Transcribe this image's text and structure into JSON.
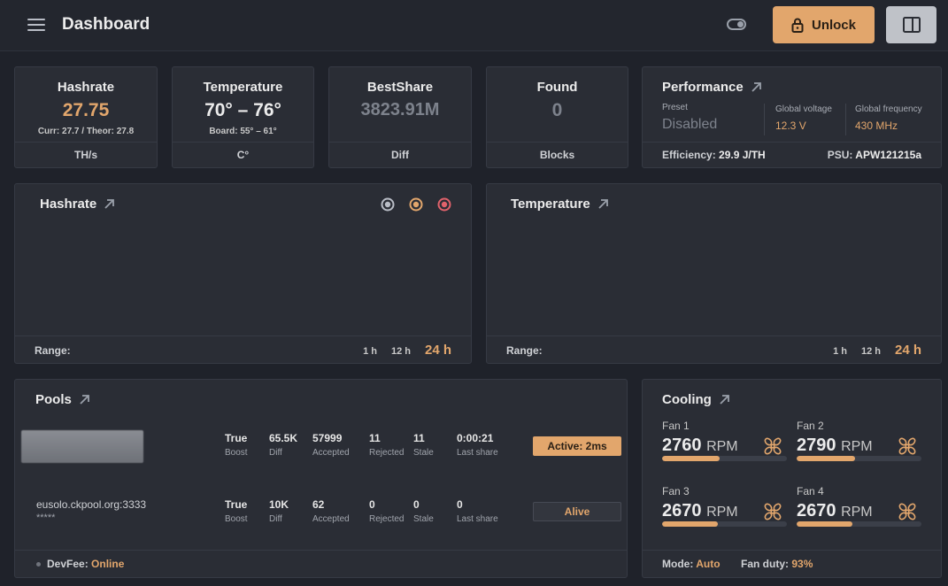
{
  "header": {
    "title": "Dashboard",
    "unlock_label": "Unlock",
    "icons": [
      "menu-icon",
      "toggle-icon",
      "lock-icon",
      "sidebar-panel-icon"
    ]
  },
  "stats": {
    "hashrate": {
      "title": "Hashrate",
      "value": "27.75",
      "sub": "Curr: 27.7 / Theor: 27.8",
      "unit": "TH/s"
    },
    "temperature": {
      "title": "Temperature",
      "value": "70° – 76°",
      "sub": "Board: 55° – 61°",
      "unit": "C°"
    },
    "bestshare": {
      "title": "BestShare",
      "value": "3823.91M",
      "unit": "Diff"
    },
    "found": {
      "title": "Found",
      "value": "0",
      "unit": "Blocks"
    }
  },
  "performance": {
    "title": "Performance",
    "preset_label": "Preset",
    "preset_value": "Disabled",
    "voltage_label": "Global voltage",
    "voltage_value": "12.3 V",
    "frequency_label": "Global frequency",
    "frequency_value": "430 MHz",
    "efficiency_label": "Efficiency:",
    "efficiency_value": "29.9 J/TH",
    "psu_label": "PSU:",
    "psu_value": "APW121215a"
  },
  "hashrate_chart": {
    "title": "Hashrate",
    "range_label": "Range:",
    "ranges": [
      "1 h",
      "12 h",
      "24 h"
    ],
    "selected_range": "24 h",
    "legend_colors": [
      "#b9bdc6",
      "#e2a66c",
      "#e0626b"
    ]
  },
  "temperature_chart": {
    "title": "Temperature",
    "range_label": "Range:",
    "ranges": [
      "1 h",
      "12 h",
      "24 h"
    ],
    "selected_range": "24 h"
  },
  "pools": {
    "title": "Pools",
    "rows": [
      {
        "url": "",
        "user": "",
        "boost": "True",
        "boost_label": "Boost",
        "diff": "65.5K",
        "diff_label": "Diff",
        "accepted": "57999",
        "accepted_label": "Accepted",
        "rejected": "11",
        "rejected_label": "Rejected",
        "stale": "11",
        "stale_label": "Stale",
        "last_share": "0:00:21",
        "last_share_label": "Last share",
        "status": "Active: 2ms"
      },
      {
        "url": "eusolo.ckpool.org:3333",
        "user": "*****",
        "boost": "True",
        "boost_label": "Boost",
        "diff": "10K",
        "diff_label": "Diff",
        "accepted": "62",
        "accepted_label": "Accepted",
        "rejected": "0",
        "rejected_label": "Rejected",
        "stale": "0",
        "stale_label": "Stale",
        "last_share": "0",
        "last_share_label": "Last share",
        "status": "Alive"
      }
    ],
    "devfee_label": "DevFee:",
    "devfee_value": "Online"
  },
  "cooling": {
    "title": "Cooling",
    "unit": "RPM",
    "fans": [
      {
        "name": "Fan 1",
        "rpm": "2760",
        "level": 0.46
      },
      {
        "name": "Fan 2",
        "rpm": "2790",
        "level": 0.47
      },
      {
        "name": "Fan 3",
        "rpm": "2670",
        "level": 0.45
      },
      {
        "name": "Fan 4",
        "rpm": "2670",
        "level": 0.45
      }
    ],
    "mode_label": "Mode:",
    "mode_value": "Auto",
    "duty_label": "Fan duty:",
    "duty_value": "93%"
  }
}
